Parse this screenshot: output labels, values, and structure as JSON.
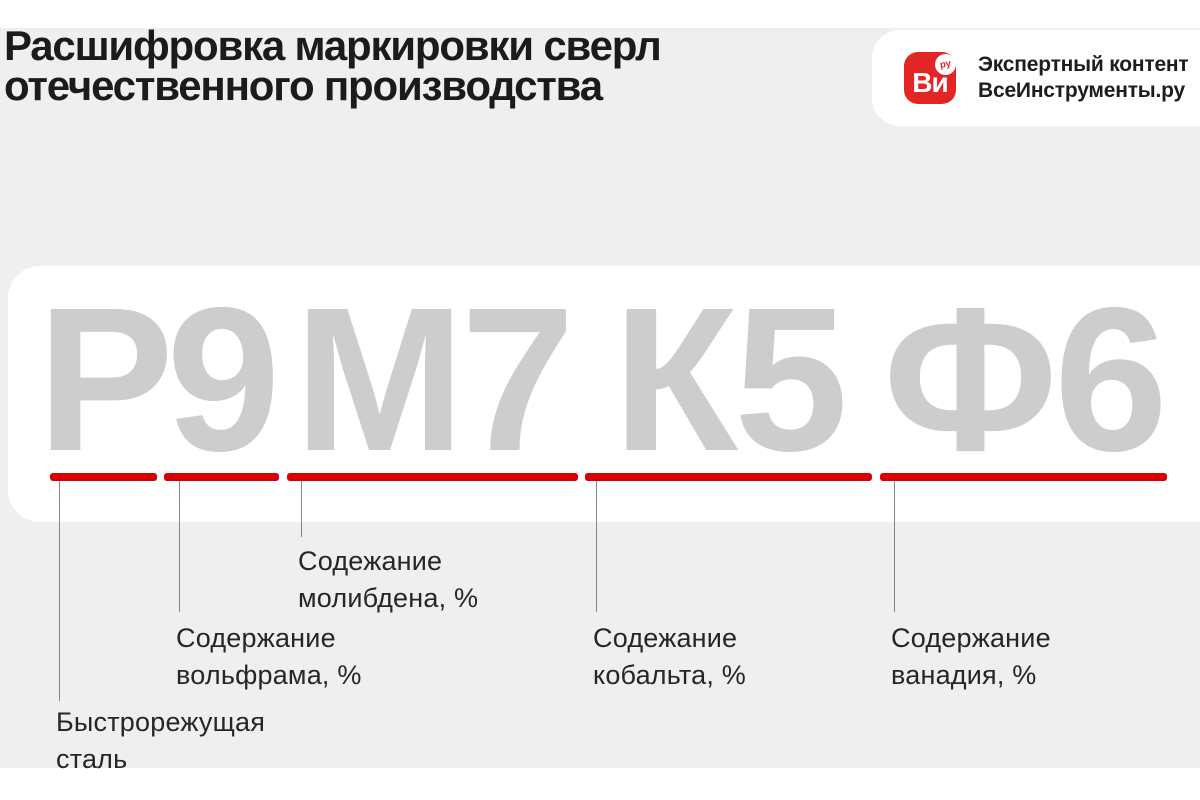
{
  "header": {
    "title_line1": "Расшифровка маркировки сверл",
    "title_line2": "отечественного производства"
  },
  "brand": {
    "icon_text": "Ви",
    "icon_badge": "ру",
    "tagline": "Экспертный контент",
    "name": "ВсеИнструменты.ру"
  },
  "marking": {
    "full": "Р9М7К5Ф6",
    "groups": [
      {
        "letters": "Р",
        "label": "Быстрорежущая сталь"
      },
      {
        "letters": "9",
        "label": "Содержание вольфрама, %"
      },
      {
        "letters": "М7",
        "label": "Содежание молибдена, %"
      },
      {
        "letters": "К5",
        "label": "Содежание кобальта, %"
      },
      {
        "letters": "Ф6",
        "label": "Содержание ванадия, %"
      }
    ]
  },
  "colors": {
    "background_gray": "#efefef",
    "card_white": "#ffffff",
    "marking_letters_gray": "#cdcdcd",
    "underline_red": "#d40001",
    "brand_red": "#e32526",
    "text_dark": "#1b1b1b"
  }
}
